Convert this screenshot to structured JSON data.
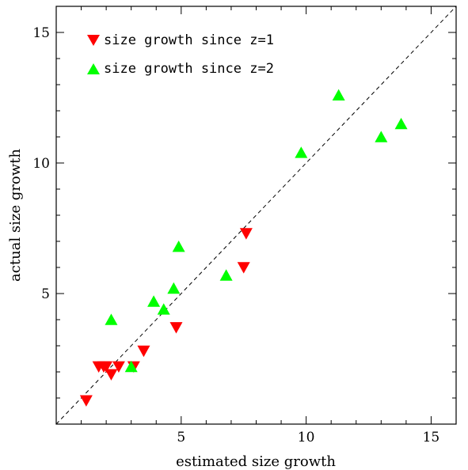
{
  "chart_data": {
    "type": "scatter",
    "xlabel": "estimated size growth",
    "ylabel": "actual size growth",
    "xlim": [
      0,
      16
    ],
    "ylim": [
      0,
      16
    ],
    "xticks": [
      5,
      10,
      15
    ],
    "yticks": [
      5,
      10,
      15
    ],
    "reference_line": {
      "style": "dashed",
      "from": [
        0,
        0
      ],
      "to": [
        16,
        16
      ],
      "color": "#000000"
    },
    "legend_position": "top-left",
    "series": [
      {
        "name": "size growth since z=1",
        "marker": "triangle-down",
        "color": "#ff0000",
        "points": [
          {
            "x": 1.2,
            "y": 0.9
          },
          {
            "x": 1.7,
            "y": 2.2
          },
          {
            "x": 1.9,
            "y": 2.2
          },
          {
            "x": 2.0,
            "y": 2.2
          },
          {
            "x": 2.2,
            "y": 1.9
          },
          {
            "x": 2.5,
            "y": 2.2
          },
          {
            "x": 3.1,
            "y": 2.2
          },
          {
            "x": 3.5,
            "y": 2.8
          },
          {
            "x": 4.8,
            "y": 3.7
          },
          {
            "x": 7.5,
            "y": 6.0
          },
          {
            "x": 7.6,
            "y": 7.3
          }
        ]
      },
      {
        "name": "size growth since z=2",
        "marker": "triangle-up",
        "color": "#00ff00",
        "points": [
          {
            "x": 2.2,
            "y": 4.0
          },
          {
            "x": 3.0,
            "y": 2.2
          },
          {
            "x": 3.9,
            "y": 4.7
          },
          {
            "x": 4.3,
            "y": 4.4
          },
          {
            "x": 4.7,
            "y": 5.2
          },
          {
            "x": 4.9,
            "y": 6.8
          },
          {
            "x": 6.8,
            "y": 5.7
          },
          {
            "x": 9.8,
            "y": 10.4
          },
          {
            "x": 11.3,
            "y": 12.6
          },
          {
            "x": 13.0,
            "y": 11.0
          },
          {
            "x": 13.8,
            "y": 11.5
          }
        ]
      }
    ]
  }
}
